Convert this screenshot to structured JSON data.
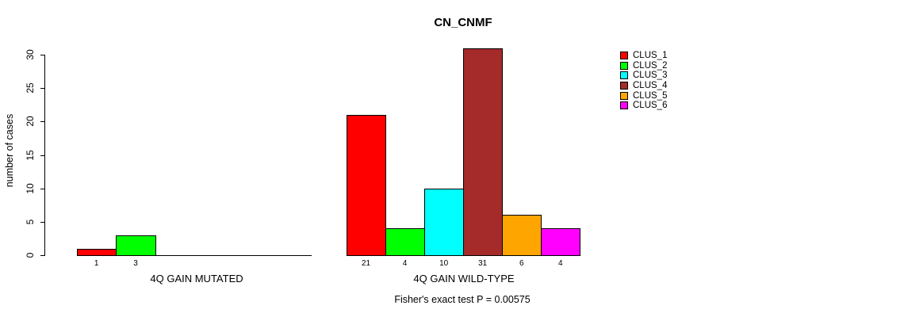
{
  "chart_data": {
    "type": "bar",
    "title": "CN_CNMF",
    "ylabel": "number of cases",
    "ylim": [
      0,
      30
    ],
    "yticks": [
      0,
      5,
      10,
      15,
      20,
      25,
      30
    ],
    "grid": false,
    "legend_position": "right-outside",
    "categories": [
      "CLUS_1",
      "CLUS_2",
      "CLUS_3",
      "CLUS_4",
      "CLUS_5",
      "CLUS_6"
    ],
    "palette": [
      "#FF0000",
      "#00FF00",
      "#00FFFF",
      "#A52A2A",
      "#FFA500",
      "#FF00FF"
    ],
    "legend": [
      {
        "label": "CLUS_1",
        "color": "#FF0000"
      },
      {
        "label": "CLUS_2",
        "color": "#00FF00"
      },
      {
        "label": "CLUS_3",
        "color": "#00FFFF"
      },
      {
        "label": "CLUS_4",
        "color": "#A52A2A"
      },
      {
        "label": "CLUS_5",
        "color": "#FFA500"
      },
      {
        "label": "CLUS_6",
        "color": "#FF00FF"
      }
    ],
    "groups": [
      {
        "label": "4Q GAIN MUTATED",
        "values": [
          1,
          3,
          0,
          0,
          0,
          0
        ],
        "bar_labels": [
          "1",
          "3",
          "",
          "",
          "",
          ""
        ]
      },
      {
        "label": "4Q GAIN WILD-TYPE",
        "values": [
          21,
          4,
          10,
          31,
          6,
          4
        ],
        "bar_labels": [
          "21",
          "4",
          "10",
          "31",
          "6",
          "4"
        ]
      }
    ],
    "annotation": "Fisher's exact test P = 0.00575"
  }
}
